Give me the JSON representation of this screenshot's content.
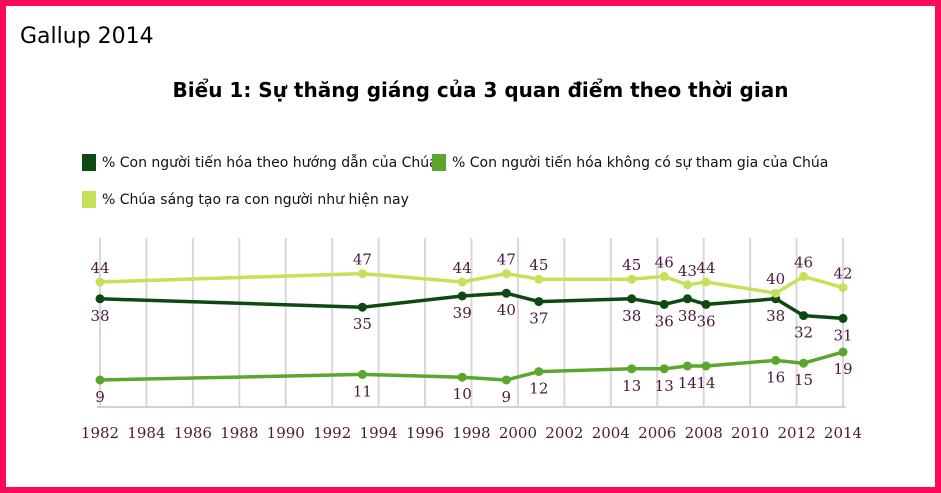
{
  "source_label": "Gallup 2014",
  "chart_data": {
    "type": "line",
    "title": "Biểu 1: Sự thăng giáng của 3 quan điểm theo thời gian",
    "xlabel": "",
    "ylabel": "",
    "xlim": [
      1982,
      2014
    ],
    "ylim": [
      0,
      50
    ],
    "grid": "vertical",
    "legend_position": "top-left",
    "x_ticks": [
      "1982",
      "1984",
      "1986",
      "1988",
      "1990",
      "1992",
      "1994",
      "1996",
      "1998",
      "2000",
      "2002",
      "2004",
      "2006",
      "2008",
      "2010",
      "2012",
      "2014"
    ],
    "x": [
      1982,
      1993.3,
      1997.6,
      1999.5,
      2000.9,
      2004.9,
      2006.3,
      2007.3,
      2008.1,
      2011.1,
      2012.3,
      2014
    ],
    "series": [
      {
        "name": "% Con người tiến hóa theo hướng dẫn của Chúa",
        "color": "#0d4a12",
        "label_pos": "below",
        "values": [
          38,
          35,
          39,
          40,
          37,
          38,
          36,
          38,
          36,
          38,
          32,
          31
        ]
      },
      {
        "name": "% Con người tiến hóa không có sự tham gia của Chúa",
        "color": "#5ba72c",
        "label_pos": "below",
        "values": [
          9,
          11,
          10,
          9,
          12,
          13,
          13,
          14,
          14,
          16,
          15,
          19
        ]
      },
      {
        "name": "% Chúa sáng tạo ra con người như hiện nay",
        "color": "#c6e05a",
        "label_pos": "above",
        "values": [
          44,
          47,
          44,
          47,
          45,
          45,
          46,
          43,
          44,
          40,
          46,
          42
        ]
      }
    ]
  }
}
